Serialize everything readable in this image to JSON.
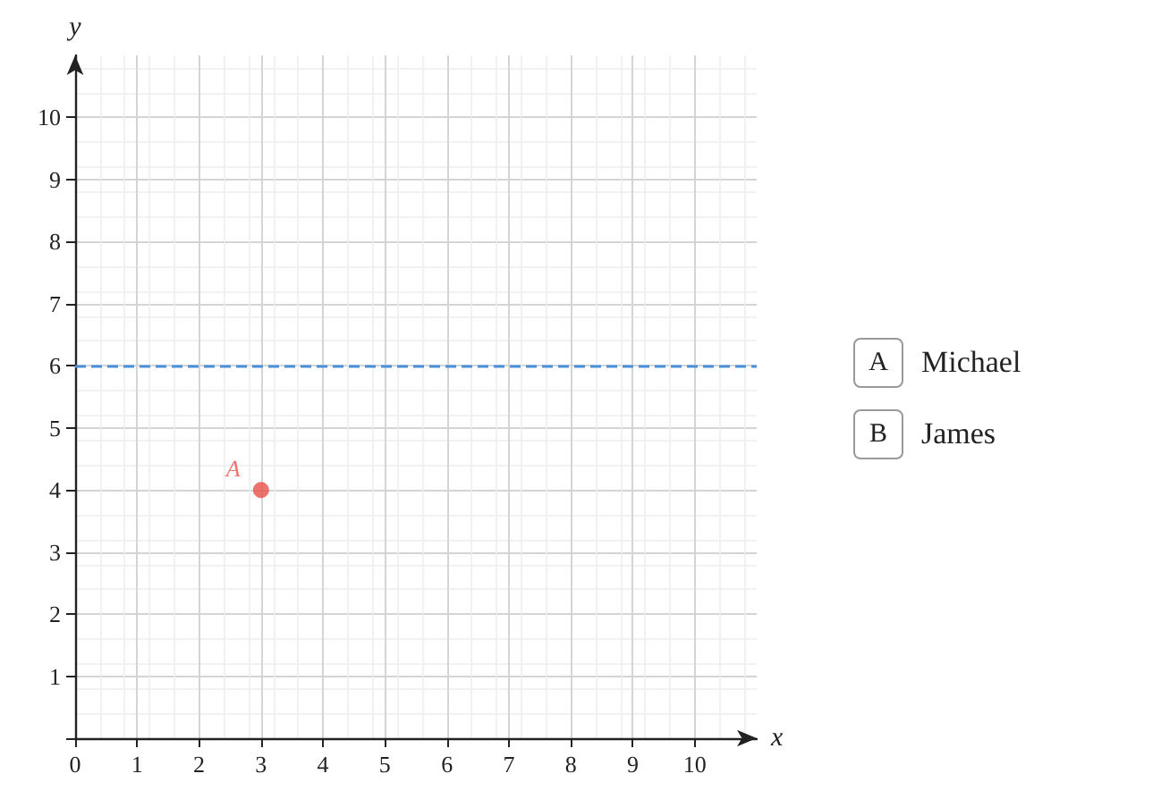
{
  "chart_data": {
    "type": "scatter",
    "xlabel": "x",
    "ylabel": "y",
    "x": [
      3
    ],
    "series": [
      {
        "name": "A",
        "color": "#e8504a",
        "values": [
          4
        ]
      }
    ],
    "xlim": [
      0,
      11
    ],
    "ylim": [
      0,
      11
    ],
    "xticks": [
      {
        "value": 0,
        "label": "0"
      },
      1,
      2,
      3,
      4,
      5,
      6,
      7,
      8,
      9,
      10
    ],
    "yticks": [
      {
        "value": 0,
        "label": null
      },
      1,
      2,
      3,
      4,
      5,
      6,
      7,
      8,
      9,
      10
    ],
    "ref_lines": [
      {
        "axis": "y",
        "value": 6,
        "label": null,
        "color": "#4a90d9",
        "line_style": "dashed"
      }
    ],
    "grid": true,
    "legend": false,
    "marker": "circle",
    "annotations": [
      "A",
      "Michael",
      "B",
      "James"
    ]
  }
}
